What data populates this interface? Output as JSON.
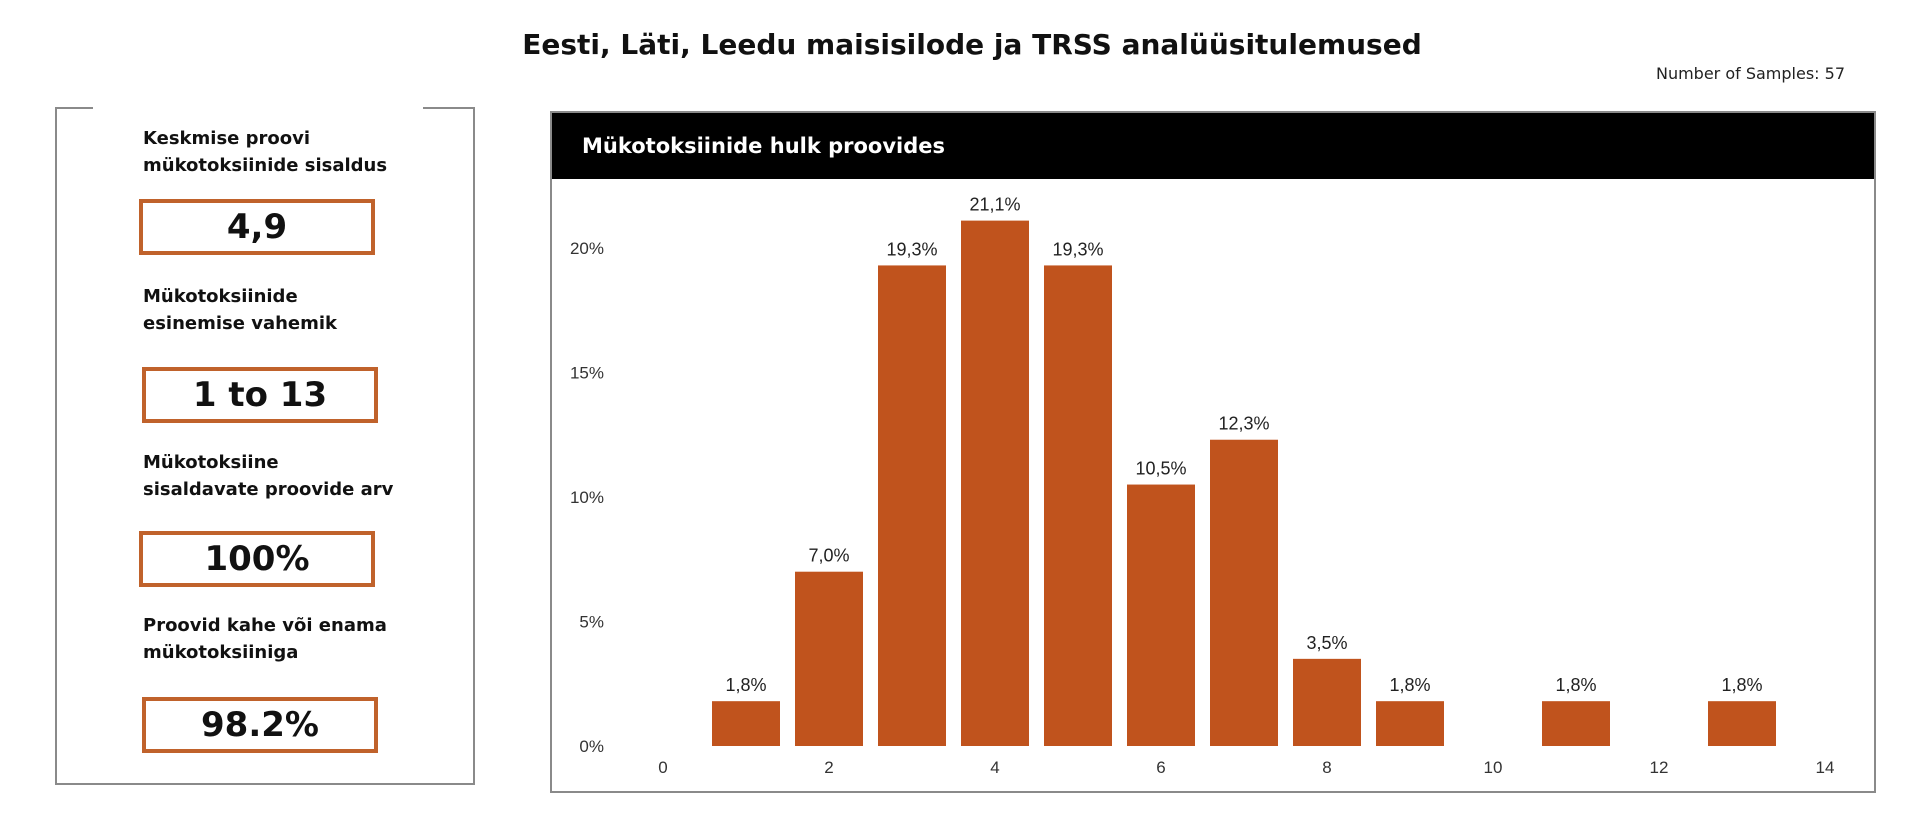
{
  "title": "Eesti, Läti, Leedu maisisilode ja TRSS analüüsitulemused",
  "samples_label": "Number of Samples: 57",
  "summary": [
    {
      "label": [
        "Keskmise proovi",
        "mükotoksiinide sisaldus"
      ],
      "value": "4,9"
    },
    {
      "label": [
        "Mükotoksiinide",
        "esinemise vahemik"
      ],
      "value": "1 to 13"
    },
    {
      "label": [
        "Mükotoksiine",
        "sisaldavate proovide arv"
      ],
      "value": "100%"
    },
    {
      "label": [
        "Proovid kahe või enama",
        "mükotoksiiniga"
      ],
      "value": "98.2%"
    }
  ],
  "colors": {
    "bar": "#c0531d",
    "box_border": "#c0622b",
    "header_bg": "#000000"
  },
  "chart_data": {
    "type": "bar",
    "title": "Mükotoksiinide hulk proovides",
    "x": [
      1,
      2,
      3,
      4,
      5,
      6,
      7,
      8,
      9,
      11,
      13
    ],
    "values": [
      1.8,
      7.0,
      19.3,
      21.1,
      19.3,
      10.5,
      12.3,
      3.5,
      1.8,
      1.8,
      1.8
    ],
    "data_labels": [
      "1,8%",
      "7,0%",
      "19,3%",
      "21,1%",
      "19,3%",
      "10,5%",
      "12,3%",
      "3,5%",
      "1,8%",
      "1,8%",
      "1,8%"
    ],
    "xlim": [
      0,
      14
    ],
    "xticks": [
      "0",
      "2",
      "4",
      "6",
      "8",
      "10",
      "12",
      "14"
    ],
    "ylim": [
      0,
      22
    ],
    "yticks": [
      "0%",
      "5%",
      "10%",
      "15%",
      "20%"
    ],
    "grid": false,
    "legend": "none"
  }
}
